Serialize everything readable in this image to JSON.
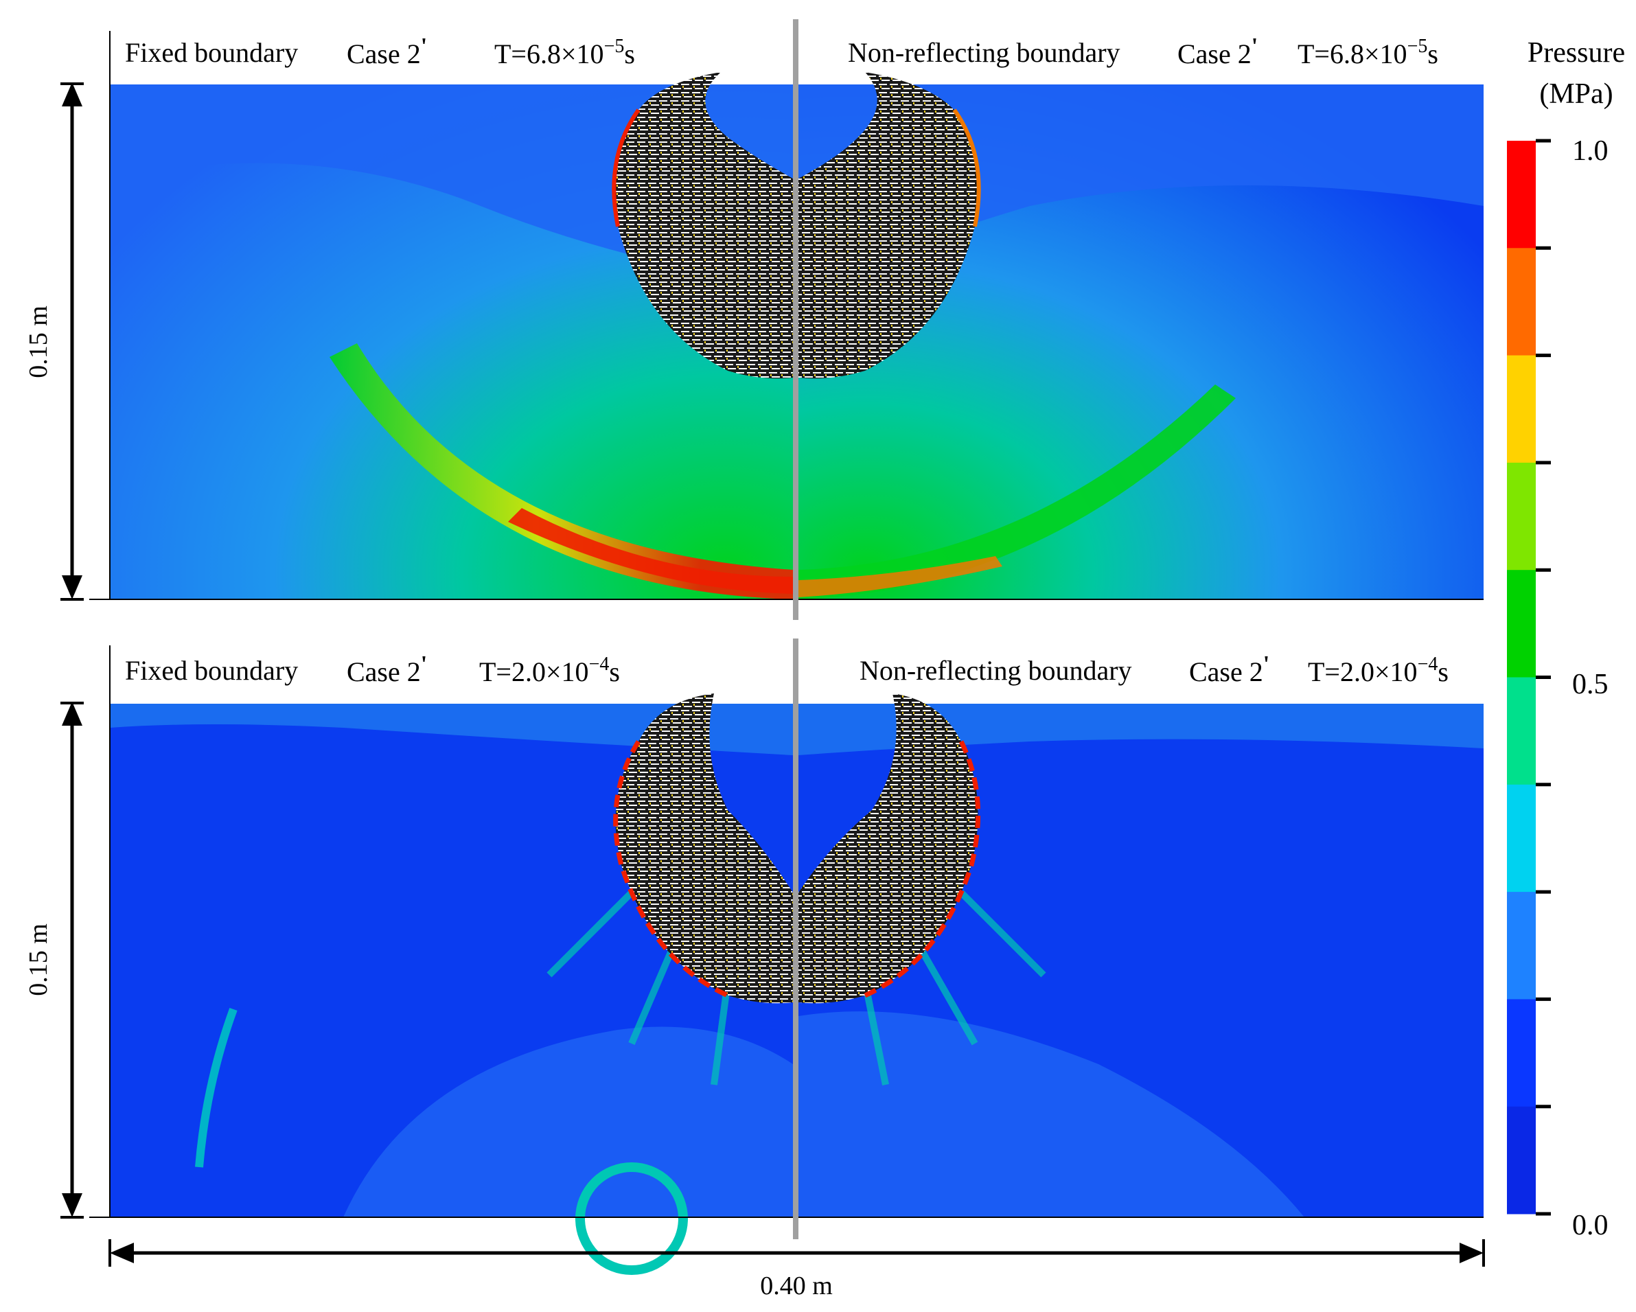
{
  "panels": [
    {
      "left": {
        "boundary": "Fixed boundary",
        "case": "Case 2",
        "prime": "'",
        "time": "T=6.8×10",
        "exp": "−5",
        "unit": "s"
      },
      "right": {
        "boundary": "Non-reflecting boundary",
        "case": "Case 2",
        "prime": "'",
        "time": "T=6.8×10",
        "exp": "−5",
        "unit": "s"
      }
    },
    {
      "left": {
        "boundary": "Fixed boundary",
        "case": "Case 2",
        "prime": "'",
        "time": "T=2.0×10",
        "exp": "−4",
        "unit": "s"
      },
      "right": {
        "boundary": "Non-reflecting boundary",
        "case": "Case 2",
        "prime": "'",
        "time": "T=2.0×10",
        "exp": "−4",
        "unit": "s"
      }
    }
  ],
  "dimensions": {
    "height": "0.15 m",
    "width": "0.40 m"
  },
  "colorbar": {
    "title_line1": "Pressure",
    "title_line2": "(MPa)",
    "ticks": [
      "1.0",
      "0.5",
      "0.0"
    ],
    "colors": [
      "#ff0000",
      "#ff6a00",
      "#ffd200",
      "#7fe600",
      "#00d200",
      "#00e08c",
      "#00d2f0",
      "#1e82ff",
      "#0a37ff",
      "#0a28e6"
    ]
  },
  "field_colors": {
    "deep_blue": "#0a3cf0",
    "blue": "#1e64f5",
    "sky": "#1e96ee",
    "teal": "#00c8b4",
    "green": "#22d21e",
    "yellow": "#e0e600",
    "red": "#f01e00",
    "particle": "#1a1a1a"
  }
}
